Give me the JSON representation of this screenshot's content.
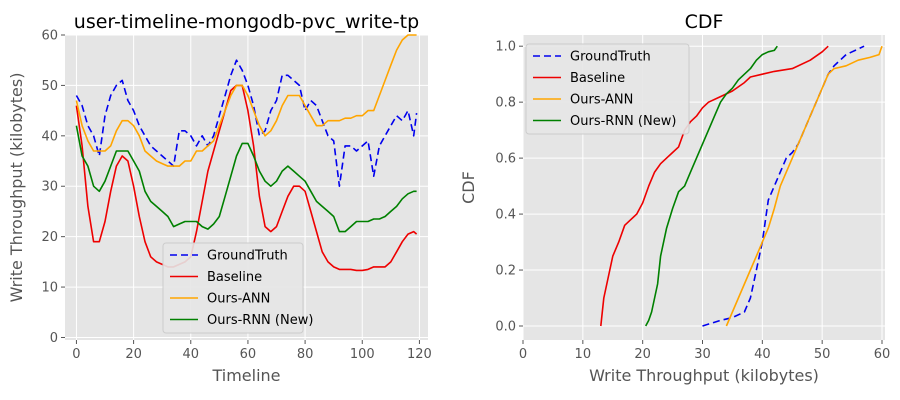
{
  "chart_data": [
    {
      "type": "line",
      "title": "user-timeline-mongodb-pvc_write-tp",
      "xlabel": "Timeline",
      "ylabel": "Write Throughput (kilobytes)",
      "xlim": [
        -4,
        123
      ],
      "ylim": [
        -0.5,
        60
      ],
      "xticks": [
        0,
        20,
        40,
        60,
        80,
        100,
        120
      ],
      "yticks": [
        0,
        10,
        20,
        30,
        40,
        50,
        60
      ],
      "grid": true,
      "legend_position": "lower-center",
      "x": [
        0,
        2,
        4,
        6,
        8,
        10,
        12,
        14,
        16,
        18,
        20,
        22,
        24,
        26,
        28,
        30,
        32,
        34,
        36,
        38,
        40,
        42,
        44,
        46,
        48,
        50,
        52,
        54,
        56,
        58,
        60,
        62,
        64,
        66,
        68,
        70,
        72,
        74,
        76,
        78,
        80,
        82,
        84,
        86,
        88,
        90,
        92,
        94,
        96,
        98,
        100,
        102,
        104,
        106,
        108,
        110,
        112,
        114,
        116,
        118,
        119
      ],
      "series": [
        {
          "name": "GroundTruth",
          "color": "#0000ee",
          "dash": "7,4",
          "values": [
            48,
            46,
            42,
            40,
            36,
            44,
            48,
            50,
            51,
            47,
            45,
            42,
            40,
            38,
            37,
            36,
            35,
            34,
            41,
            41,
            40,
            38,
            40,
            38,
            40,
            44,
            48,
            52,
            55,
            53,
            50,
            46,
            40,
            41,
            45,
            47,
            52,
            52,
            51,
            50,
            45,
            47,
            46,
            43,
            40,
            39,
            30,
            38,
            38,
            37,
            38,
            39,
            32,
            38,
            40,
            42,
            44,
            43,
            45,
            40,
            44.5
          ]
        },
        {
          "name": "Baseline",
          "color": "#ee0000",
          "dash": "",
          "values": [
            46,
            38,
            26,
            19,
            19,
            23,
            29,
            34,
            36,
            35,
            30,
            24,
            19,
            16,
            15,
            14.5,
            14,
            14,
            14.5,
            15,
            16,
            21,
            27,
            33,
            37,
            41,
            45,
            49,
            50,
            50,
            45,
            38,
            28,
            22,
            21,
            22,
            25,
            28,
            30,
            30,
            29,
            25,
            21,
            17,
            15,
            14,
            13.5,
            13.5,
            13.5,
            13.3,
            13.3,
            13.5,
            14,
            14,
            14,
            15,
            17,
            19,
            20.5,
            21,
            20.5
          ]
        },
        {
          "name": "Ours-ANN",
          "color": "#ffa500",
          "dash": "",
          "values": [
            47,
            42,
            39,
            37,
            37,
            37,
            38,
            41,
            43,
            43,
            42,
            40,
            37,
            36,
            35,
            34.5,
            34,
            34,
            34,
            35,
            35,
            37,
            37,
            38,
            39,
            42,
            45,
            48,
            50,
            50,
            48,
            45,
            42,
            40,
            41,
            43,
            46,
            48,
            48,
            48,
            46,
            44,
            42,
            42,
            43,
            43,
            43,
            43.5,
            43.5,
            44,
            44,
            45,
            45,
            48,
            51,
            54,
            57,
            59,
            60,
            60,
            60
          ]
        },
        {
          "name": "Ours-RNN (New)",
          "color": "#008000",
          "dash": "",
          "values": [
            42,
            36,
            34,
            30,
            29,
            31,
            34,
            37,
            37,
            37,
            35,
            33,
            29,
            27,
            26,
            25,
            24,
            22,
            22.5,
            23,
            23,
            23,
            22,
            21.5,
            22.5,
            24,
            28,
            32,
            36,
            38.5,
            38.5,
            36,
            33,
            31,
            30,
            31,
            33,
            34,
            33,
            32,
            31,
            29,
            27,
            26,
            25,
            24,
            21,
            21,
            22,
            23,
            23,
            23,
            23.5,
            23.5,
            24,
            25,
            26,
            27.5,
            28.5,
            29,
            29
          ]
        }
      ]
    },
    {
      "type": "line",
      "title": "CDF",
      "xlabel": "Write Throughput (kilobytes)",
      "ylabel": "CDF",
      "xlim": [
        0,
        60.5
      ],
      "ylim": [
        -0.05,
        1.04
      ],
      "xticks": [
        0,
        10,
        20,
        30,
        40,
        50,
        60
      ],
      "yticks": [
        0.0,
        0.2,
        0.4,
        0.6,
        0.8,
        1.0
      ],
      "grid": true,
      "legend_position": "top-left",
      "series": [
        {
          "name": "GroundTruth",
          "color": "#0000ee",
          "dash": "7,4",
          "x": [
            30,
            33,
            35,
            37,
            38,
            39,
            40,
            41,
            42,
            43,
            44,
            45,
            46,
            47,
            48,
            49,
            50,
            51,
            52,
            53,
            54,
            55,
            56,
            57
          ],
          "y": [
            0.0,
            0.02,
            0.03,
            0.05,
            0.1,
            0.2,
            0.3,
            0.45,
            0.5,
            0.55,
            0.6,
            0.62,
            0.65,
            0.7,
            0.75,
            0.8,
            0.85,
            0.9,
            0.93,
            0.95,
            0.97,
            0.98,
            0.99,
            1.0
          ]
        },
        {
          "name": "Baseline",
          "color": "#ee0000",
          "dash": "",
          "x": [
            13,
            13.5,
            14,
            14.5,
            15,
            16,
            17,
            18,
            19,
            20,
            21,
            22,
            23,
            24,
            25,
            26,
            27,
            28,
            29,
            30,
            31,
            33,
            35,
            37,
            38,
            40,
            42,
            45,
            48,
            50,
            51
          ],
          "y": [
            0.0,
            0.1,
            0.15,
            0.2,
            0.25,
            0.3,
            0.36,
            0.38,
            0.4,
            0.44,
            0.5,
            0.55,
            0.58,
            0.6,
            0.62,
            0.64,
            0.7,
            0.73,
            0.75,
            0.78,
            0.8,
            0.82,
            0.84,
            0.87,
            0.89,
            0.9,
            0.91,
            0.92,
            0.95,
            0.98,
            1.0
          ]
        },
        {
          "name": "Ours-ANN",
          "color": "#ffa500",
          "dash": "",
          "x": [
            34,
            35,
            36,
            37,
            38,
            39,
            40,
            41,
            42,
            43,
            44,
            45,
            46,
            47,
            48,
            49,
            50,
            51,
            52,
            54,
            56,
            58,
            59.5,
            60
          ],
          "y": [
            0.0,
            0.05,
            0.1,
            0.15,
            0.2,
            0.25,
            0.3,
            0.35,
            0.42,
            0.5,
            0.55,
            0.6,
            0.65,
            0.7,
            0.75,
            0.8,
            0.85,
            0.9,
            0.92,
            0.93,
            0.95,
            0.96,
            0.97,
            1.0
          ]
        },
        {
          "name": "Ours-RNN (New)",
          "color": "#008000",
          "dash": "",
          "x": [
            20.5,
            21,
            21.5,
            22,
            22.5,
            23,
            24,
            25,
            26,
            27,
            28,
            29,
            30,
            31,
            32,
            33,
            34,
            35,
            36,
            37,
            38,
            39,
            40,
            41,
            42,
            42.5
          ],
          "y": [
            0.0,
            0.02,
            0.05,
            0.1,
            0.15,
            0.25,
            0.35,
            0.42,
            0.48,
            0.5,
            0.55,
            0.6,
            0.65,
            0.7,
            0.75,
            0.8,
            0.83,
            0.85,
            0.88,
            0.9,
            0.92,
            0.95,
            0.97,
            0.98,
            0.985,
            1.0
          ]
        }
      ]
    }
  ]
}
